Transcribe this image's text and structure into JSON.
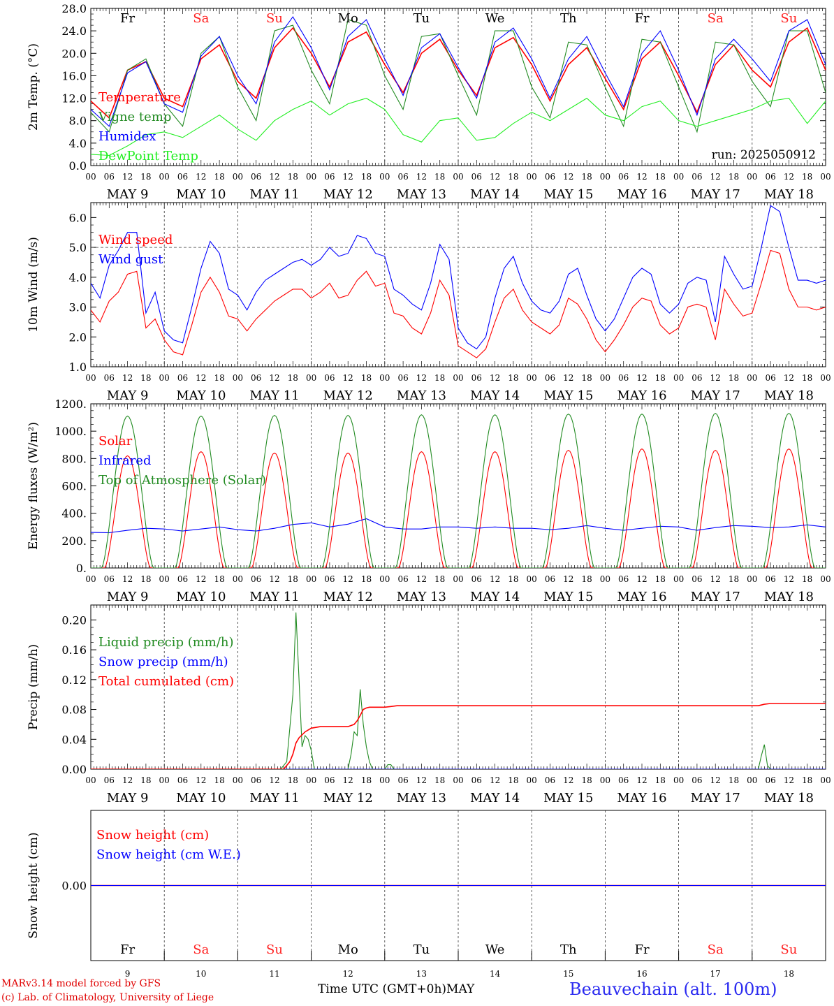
{
  "x_ticks": [
    "00",
    "06",
    "12",
    "18"
  ],
  "date_labels": [
    "MAY  9",
    "MAY 10",
    "MAY 11",
    "MAY 12",
    "MAY 13",
    "MAY 14",
    "MAY 15",
    "MAY 16",
    "MAY 17",
    "MAY 18"
  ],
  "day_names": [
    "Fr",
    "Sa",
    "Su",
    "Mo",
    "Tu",
    "We",
    "Th",
    "Fr",
    "Sa",
    "Su"
  ],
  "day_numbers": [
    "9",
    "10",
    "11",
    "12",
    "13",
    "14",
    "15",
    "16",
    "17",
    "18"
  ],
  "weekend_color": "#ff2020",
  "weekday_color": "#000000",
  "footer": {
    "credit_line1": "MARv3.14 model forced by GFS",
    "credit_line2": "(c) Lab. of Climatology, University of Liege",
    "xlabel": "Time UTC (GMT+0h)MAY",
    "station": "Beauvechain (alt. 100m)"
  },
  "chart_data": [
    {
      "type": "line",
      "ylabel": "2m Temp. (°C)",
      "ylim": [
        0,
        28
      ],
      "yticks": [
        "0.0",
        "4.0",
        "8.0",
        "12.0",
        "16.0",
        "20.0",
        "24.0",
        "28.0"
      ],
      "run_label": "run: 2025050912",
      "x_unit": "hours since 2025-05-09 00 UTC",
      "series": [
        {
          "name": "Temperature",
          "color": "#ff0000",
          "x": [
            0,
            6,
            12,
            18,
            24,
            30,
            36,
            42,
            48,
            54,
            60,
            66,
            72,
            78,
            84,
            90,
            96,
            102,
            108,
            114,
            120,
            126,
            132,
            138,
            144,
            150,
            156,
            162,
            168,
            174,
            180,
            186,
            192,
            198,
            204,
            210,
            216,
            222,
            228,
            234,
            240
          ],
          "values": [
            11.5,
            8.5,
            17,
            18.5,
            12,
            10.5,
            19,
            21.5,
            15,
            12,
            21,
            24.5,
            20,
            14,
            22,
            23.8,
            18,
            13,
            20,
            22.5,
            17,
            12.5,
            21,
            22.8,
            18,
            11.5,
            18,
            21,
            15.5,
            10,
            19,
            22,
            16,
            9.5,
            18,
            21.5,
            17,
            14,
            22,
            24.5,
            17
          ]
        },
        {
          "name": "Vigne temp",
          "color": "#228b22",
          "x": [
            0,
            6,
            12,
            18,
            24,
            30,
            36,
            42,
            48,
            54,
            60,
            66,
            72,
            78,
            84,
            90,
            96,
            102,
            108,
            114,
            120,
            126,
            132,
            138,
            144,
            150,
            156,
            162,
            168,
            174,
            180,
            186,
            192,
            198,
            204,
            210,
            216,
            222,
            228,
            234,
            240
          ],
          "values": [
            9.5,
            6,
            17,
            19,
            11,
            7,
            20,
            23,
            14,
            8,
            24,
            25,
            17,
            11,
            26,
            25,
            16,
            10,
            23,
            23.5,
            16,
            9,
            24,
            24,
            14,
            8.5,
            22,
            21.5,
            14,
            7,
            22.5,
            22,
            14,
            6,
            22,
            21.5,
            15,
            10.5,
            24,
            24,
            13
          ]
        },
        {
          "name": "Humidex",
          "color": "#0000ff",
          "x": [
            0,
            6,
            12,
            18,
            24,
            30,
            36,
            42,
            48,
            54,
            60,
            66,
            72,
            78,
            84,
            90,
            96,
            102,
            108,
            114,
            120,
            126,
            132,
            138,
            144,
            150,
            156,
            162,
            168,
            174,
            180,
            186,
            192,
            198,
            204,
            210,
            216,
            222,
            228,
            234,
            240
          ],
          "values": [
            10,
            7,
            16.5,
            18.5,
            11,
            9.5,
            19.5,
            23,
            16,
            11,
            22,
            26.5,
            21,
            13.5,
            23,
            26,
            19,
            12.5,
            21,
            23.5,
            17.5,
            12,
            22,
            24.5,
            19,
            12,
            19,
            23,
            16.5,
            10.5,
            20,
            24,
            17,
            9,
            19,
            22.5,
            19,
            15,
            24,
            26,
            18
          ]
        },
        {
          "name": "DewPoint Temp",
          "color": "#22ee22",
          "x": [
            0,
            6,
            12,
            18,
            24,
            30,
            36,
            42,
            48,
            54,
            60,
            66,
            72,
            78,
            84,
            90,
            96,
            102,
            108,
            114,
            120,
            126,
            132,
            138,
            144,
            150,
            156,
            162,
            168,
            174,
            180,
            186,
            192,
            198,
            204,
            210,
            216,
            222,
            228,
            234,
            240
          ],
          "values": [
            2,
            1.8,
            3.5,
            5.5,
            6,
            5,
            7,
            9,
            6.5,
            4.5,
            8,
            10,
            11.5,
            9,
            11,
            12,
            10,
            5.5,
            4.2,
            8,
            8.5,
            4.5,
            5,
            7.5,
            9.5,
            8,
            10,
            12,
            9,
            8,
            10.5,
            11.5,
            8,
            7,
            8,
            9,
            10,
            11.5,
            12,
            7.5,
            11.5
          ]
        }
      ],
      "legend": [
        "Temperature",
        "Vigne temp",
        "Humidex",
        "DewPoint Temp"
      ],
      "legend_position": "left"
    },
    {
      "type": "line",
      "ylabel": "10m Wind (m/s)",
      "ylim": [
        1,
        6.5
      ],
      "yticks": [
        "1.0",
        "2.0",
        "3.0",
        "4.0",
        "5.0",
        "6.0"
      ],
      "reference_line": 5.0,
      "series": [
        {
          "name": "Wind speed",
          "color": "#ff0000",
          "x": [
            0,
            3,
            6,
            9,
            12,
            15,
            18,
            21,
            24,
            27,
            30,
            33,
            36,
            39,
            42,
            45,
            48,
            51,
            54,
            57,
            60,
            63,
            66,
            69,
            72,
            75,
            78,
            81,
            84,
            87,
            90,
            93,
            96,
            99,
            102,
            105,
            108,
            111,
            114,
            117,
            120,
            123,
            126,
            129,
            132,
            135,
            138,
            141,
            144,
            147,
            150,
            153,
            156,
            159,
            162,
            165,
            168,
            171,
            174,
            177,
            180,
            183,
            186,
            189,
            192,
            195,
            198,
            201,
            204,
            207,
            210,
            213,
            216,
            219,
            222,
            225,
            228,
            231,
            234,
            237,
            240
          ],
          "values": [
            2.9,
            2.5,
            3.2,
            3.5,
            4.1,
            4.2,
            2.3,
            2.6,
            1.9,
            1.5,
            1.4,
            2.4,
            3.5,
            4.0,
            3.5,
            2.7,
            2.6,
            2.2,
            2.6,
            2.9,
            3.2,
            3.4,
            3.6,
            3.6,
            3.3,
            3.5,
            3.8,
            3.3,
            3.4,
            3.9,
            4.2,
            3.7,
            3.8,
            2.8,
            2.7,
            2.3,
            2.1,
            2.8,
            3.9,
            3.4,
            1.7,
            1.5,
            1.3,
            1.6,
            2.5,
            3.3,
            3.6,
            2.9,
            2.5,
            2.3,
            2.1,
            2.4,
            3.3,
            3.1,
            2.6,
            1.9,
            1.5,
            1.9,
            2.4,
            3.0,
            3.3,
            3.2,
            2.4,
            2.1,
            2.3,
            3.0,
            3.1,
            3.0,
            1.9,
            3.6,
            3.1,
            2.7,
            2.8,
            3.8,
            4.9,
            4.8,
            3.6,
            3.0,
            3.0,
            2.9,
            3.0
          ]
        },
        {
          "name": "Wind gust",
          "color": "#0000ff",
          "x": [
            0,
            3,
            6,
            9,
            12,
            15,
            18,
            21,
            24,
            27,
            30,
            33,
            36,
            39,
            42,
            45,
            48,
            51,
            54,
            57,
            60,
            63,
            66,
            69,
            72,
            75,
            78,
            81,
            84,
            87,
            90,
            93,
            96,
            99,
            102,
            105,
            108,
            111,
            114,
            117,
            120,
            123,
            126,
            129,
            132,
            135,
            138,
            141,
            144,
            147,
            150,
            153,
            156,
            159,
            162,
            165,
            168,
            171,
            174,
            177,
            180,
            183,
            186,
            189,
            192,
            195,
            198,
            201,
            204,
            207,
            210,
            213,
            216,
            219,
            222,
            225,
            228,
            231,
            234,
            237,
            240
          ],
          "values": [
            3.8,
            3.3,
            4.4,
            4.9,
            5.5,
            5.5,
            2.8,
            3.5,
            2.2,
            1.9,
            1.8,
            3.0,
            4.3,
            5.2,
            4.8,
            3.6,
            3.4,
            2.9,
            3.5,
            3.9,
            4.1,
            4.3,
            4.5,
            4.6,
            4.4,
            4.6,
            5.0,
            4.7,
            4.8,
            5.4,
            5.3,
            4.8,
            4.7,
            3.6,
            3.4,
            3.1,
            2.9,
            3.8,
            5.1,
            4.6,
            2.3,
            1.8,
            1.6,
            2.0,
            3.3,
            4.3,
            4.7,
            3.8,
            3.2,
            2.9,
            2.8,
            3.2,
            4.1,
            4.3,
            3.4,
            2.6,
            2.2,
            2.6,
            3.3,
            4.0,
            4.3,
            4.1,
            3.1,
            2.8,
            3.1,
            3.8,
            4.0,
            3.9,
            2.5,
            4.7,
            4.1,
            3.6,
            3.7,
            5.0,
            6.4,
            6.2,
            5.0,
            3.9,
            3.9,
            3.8,
            3.9
          ]
        }
      ],
      "legend": [
        "Wind speed",
        "Wind gust"
      ],
      "legend_position": "left"
    },
    {
      "type": "line",
      "ylabel": "Energy fluxes (W/m²)",
      "ylim": [
        0,
        1200
      ],
      "yticks": [
        "0.",
        "200.",
        "400.",
        "600.",
        "800.",
        "1000.",
        "1200."
      ],
      "series": [
        {
          "name": "Solar",
          "color": "#ff0000",
          "daily_peak_hour": 12,
          "daylight_hours": [
            4.5,
            19.5
          ],
          "daily_peaks": [
            820,
            850,
            840,
            840,
            850,
            850,
            860,
            870,
            860,
            870
          ]
        },
        {
          "name": "Infrared",
          "color": "#0000ff",
          "x": [
            0,
            6,
            12,
            18,
            24,
            30,
            36,
            42,
            48,
            54,
            60,
            66,
            72,
            78,
            84,
            90,
            96,
            102,
            108,
            114,
            120,
            126,
            132,
            138,
            144,
            150,
            156,
            162,
            168,
            174,
            180,
            186,
            192,
            198,
            204,
            210,
            216,
            222,
            228,
            234,
            240
          ],
          "values": [
            260,
            258,
            275,
            290,
            285,
            270,
            285,
            300,
            280,
            270,
            290,
            318,
            330,
            300,
            320,
            360,
            300,
            285,
            285,
            300,
            300,
            290,
            300,
            290,
            290,
            280,
            290,
            310,
            290,
            275,
            290,
            305,
            300,
            275,
            295,
            310,
            305,
            295,
            300,
            315,
            300
          ]
        },
        {
          "name": "Top of Atmosphere (Solar)",
          "color": "#228b22",
          "daily_peak_hour": 12,
          "daylight_hours": [
            3.5,
            20.5
          ],
          "daily_peaks": [
            1110,
            1110,
            1115,
            1115,
            1120,
            1120,
            1125,
            1125,
            1130,
            1130
          ]
        }
      ],
      "legend": [
        "Solar",
        "Infrared",
        "Top of Atmosphere (Solar)"
      ],
      "legend_position": "left"
    },
    {
      "type": "line",
      "ylabel": "Precip (mm/h)",
      "ylim": [
        0,
        0.22
      ],
      "yticks": [
        "0.00",
        "0.04",
        "0.08",
        "0.12",
        "0.16",
        "0.20"
      ],
      "series": [
        {
          "name": "Liquid precip (mm/h)",
          "color": "#228b22",
          "x": [
            0,
            62,
            64,
            66,
            67,
            68,
            69,
            70,
            71,
            72,
            73,
            84,
            85,
            86,
            87,
            88,
            89,
            90,
            91,
            92,
            94,
            96,
            97,
            98,
            99,
            100,
            218,
            219,
            220,
            221,
            222,
            240
          ],
          "values": [
            0,
            0,
            0.01,
            0.1,
            0.21,
            0.12,
            0.03,
            0.045,
            0.04,
            0.025,
            0,
            0,
            0.02,
            0.05,
            0.045,
            0.107,
            0.06,
            0.03,
            0.01,
            0,
            0,
            0,
            0.006,
            0.006,
            0,
            0,
            0,
            0.018,
            0.033,
            0.005,
            0,
            0
          ]
        },
        {
          "name": "Snow precip (mm/h)",
          "color": "#0000ff",
          "x": [
            0,
            240
          ],
          "values": [
            0,
            0
          ]
        },
        {
          "name": "Total cumulated (cm)",
          "color": "#ff0000",
          "x": [
            0,
            63,
            65,
            66,
            67,
            68,
            70,
            72,
            75,
            84,
            86,
            87,
            88,
            89,
            90,
            91,
            92,
            96,
            98,
            100,
            160,
            218,
            220,
            222,
            240
          ],
          "values": [
            0,
            0,
            0.01,
            0.02,
            0.035,
            0.042,
            0.05,
            0.055,
            0.057,
            0.057,
            0.06,
            0.065,
            0.072,
            0.08,
            0.082,
            0.083,
            0.083,
            0.083,
            0.084,
            0.085,
            0.085,
            0.085,
            0.087,
            0.088,
            0.088
          ]
        }
      ],
      "legend": [
        "Liquid precip (mm/h)",
        "Snow precip (mm/h)",
        "Total cumulated (cm)"
      ],
      "legend_position": "left"
    },
    {
      "type": "line",
      "ylabel": "Snow height (cm)",
      "ylim": [
        -1,
        1
      ],
      "yticks": [
        "0.00"
      ],
      "series": [
        {
          "name": "Snow height (cm)",
          "color": "#ff0000",
          "x": [
            0,
            240
          ],
          "values": [
            0,
            0
          ]
        },
        {
          "name": "Snow height (cm W.E.)",
          "color": "#0000ff",
          "x": [
            0,
            240
          ],
          "values": [
            0,
            0
          ]
        }
      ],
      "legend": [
        "Snow height (cm)",
        "Snow height (cm W.E.)"
      ],
      "legend_position": "left"
    }
  ]
}
